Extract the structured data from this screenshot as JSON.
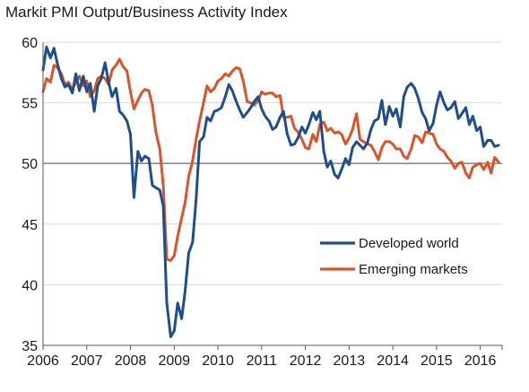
{
  "chart_data": {
    "type": "line",
    "title": "Markit PMI Output/Business Activity Index",
    "xlabel": "",
    "ylabel": "",
    "xlim": [
      2006.0,
      2016.5
    ],
    "ylim": [
      35,
      60
    ],
    "x_ticks": [
      "2006",
      "2007",
      "2008",
      "2009",
      "2010",
      "2011",
      "2012",
      "2013",
      "2014",
      "2015",
      "2016"
    ],
    "y_ticks": [
      35,
      40,
      45,
      50,
      55,
      60
    ],
    "reference_line": 50,
    "grid": "horizontal",
    "legend_position": "lower-right",
    "series": [
      {
        "name": "Developed world",
        "color": "#1f4e8c",
        "x": [
          2006.0,
          2006.08,
          2006.17,
          2006.25,
          2006.33,
          2006.42,
          2006.5,
          2006.58,
          2006.67,
          2006.75,
          2006.83,
          2006.92,
          2007.0,
          2007.08,
          2007.17,
          2007.25,
          2007.33,
          2007.42,
          2007.5,
          2007.58,
          2007.67,
          2007.75,
          2007.83,
          2007.92,
          2008.0,
          2008.08,
          2008.17,
          2008.25,
          2008.33,
          2008.42,
          2008.5,
          2008.58,
          2008.67,
          2008.75,
          2008.83,
          2008.92,
          2009.0,
          2009.08,
          2009.17,
          2009.25,
          2009.33,
          2009.42,
          2009.5,
          2009.58,
          2009.67,
          2009.75,
          2009.83,
          2009.92,
          2010.0,
          2010.08,
          2010.17,
          2010.25,
          2010.33,
          2010.42,
          2010.5,
          2010.58,
          2010.67,
          2010.75,
          2010.83,
          2010.92,
          2011.0,
          2011.08,
          2011.17,
          2011.25,
          2011.33,
          2011.42,
          2011.5,
          2011.58,
          2011.67,
          2011.75,
          2011.83,
          2011.92,
          2012.0,
          2012.08,
          2012.17,
          2012.25,
          2012.33,
          2012.42,
          2012.5,
          2012.58,
          2012.67,
          2012.75,
          2012.83,
          2012.92,
          2013.0,
          2013.08,
          2013.17,
          2013.25,
          2013.33,
          2013.42,
          2013.5,
          2013.58,
          2013.67,
          2013.75,
          2013.83,
          2013.92,
          2014.0,
          2014.08,
          2014.17,
          2014.25,
          2014.33,
          2014.42,
          2014.5,
          2014.58,
          2014.67,
          2014.75,
          2014.83,
          2014.92,
          2015.0,
          2015.08,
          2015.17,
          2015.25,
          2015.33,
          2015.42,
          2015.5,
          2015.58,
          2015.67,
          2015.75,
          2015.83,
          2015.92,
          2016.0,
          2016.08,
          2016.17,
          2016.25,
          2016.33,
          2016.42
        ],
        "values": [
          57.7,
          59.6,
          58.7,
          59.5,
          58.2,
          57.0,
          56.3,
          56.5,
          55.8,
          57.4,
          56.0,
          57.2,
          55.9,
          56.6,
          54.3,
          56.4,
          57.0,
          58.3,
          56.7,
          55.5,
          56.2,
          54.3,
          54.0,
          53.5,
          52.4,
          47.2,
          51.0,
          50.2,
          50.6,
          50.4,
          48.2,
          48.0,
          47.8,
          46.5,
          38.5,
          35.7,
          36.2,
          38.5,
          37.2,
          39.5,
          42.6,
          43.5,
          47.0,
          51.8,
          52.2,
          53.8,
          53.5,
          54.3,
          54.4,
          54.6,
          55.5,
          56.5,
          56.0,
          55.1,
          54.4,
          53.8,
          54.2,
          54.6,
          55.1,
          55.5,
          54.5,
          53.9,
          53.5,
          52.8,
          53.0,
          53.8,
          54.3,
          52.5,
          51.5,
          51.6,
          52.1,
          53.0,
          52.5,
          53.2,
          54.2,
          53.6,
          54.3,
          51.0,
          49.7,
          50.2,
          49.1,
          48.8,
          49.5,
          50.4,
          49.9,
          51.3,
          51.8,
          51.5,
          51.2,
          51.7,
          52.8,
          53.5,
          53.7,
          55.2,
          53.2,
          54.7,
          53.9,
          54.5,
          53.0,
          55.5,
          56.3,
          56.6,
          56.2,
          55.4,
          54.2,
          53.7,
          52.7,
          53.3,
          54.8,
          55.9,
          55.0,
          54.4,
          54.6,
          55.1,
          53.7,
          54.1,
          54.6,
          53.2,
          53.9,
          52.7,
          53.0,
          51.4,
          51.9,
          51.9,
          51.4,
          51.5
        ]
      },
      {
        "name": "Emerging  markets",
        "color": "#d9542b",
        "x": [
          2006.0,
          2006.08,
          2006.17,
          2006.25,
          2006.33,
          2006.42,
          2006.5,
          2006.58,
          2006.67,
          2006.75,
          2006.83,
          2006.92,
          2007.0,
          2007.08,
          2007.17,
          2007.25,
          2007.33,
          2007.42,
          2007.5,
          2007.58,
          2007.67,
          2007.75,
          2007.83,
          2007.92,
          2008.0,
          2008.08,
          2008.17,
          2008.25,
          2008.33,
          2008.42,
          2008.5,
          2008.58,
          2008.67,
          2008.75,
          2008.83,
          2008.92,
          2009.0,
          2009.08,
          2009.17,
          2009.25,
          2009.33,
          2009.42,
          2009.5,
          2009.58,
          2009.67,
          2009.75,
          2009.83,
          2009.92,
          2010.0,
          2010.08,
          2010.17,
          2010.25,
          2010.33,
          2010.42,
          2010.5,
          2010.58,
          2010.67,
          2010.75,
          2010.83,
          2010.92,
          2011.0,
          2011.08,
          2011.17,
          2011.25,
          2011.33,
          2011.42,
          2011.5,
          2011.58,
          2011.67,
          2011.75,
          2011.83,
          2011.92,
          2012.0,
          2012.08,
          2012.17,
          2012.25,
          2012.33,
          2012.42,
          2012.5,
          2012.58,
          2012.67,
          2012.75,
          2012.83,
          2012.92,
          2013.0,
          2013.08,
          2013.17,
          2013.25,
          2013.33,
          2013.42,
          2013.5,
          2013.58,
          2013.67,
          2013.75,
          2013.83,
          2013.92,
          2014.0,
          2014.08,
          2014.17,
          2014.25,
          2014.33,
          2014.42,
          2014.5,
          2014.58,
          2014.67,
          2014.75,
          2014.83,
          2014.92,
          2015.0,
          2015.08,
          2015.17,
          2015.25,
          2015.33,
          2015.42,
          2015.5,
          2015.58,
          2015.67,
          2015.75,
          2015.83,
          2015.92,
          2016.0,
          2016.08,
          2016.17,
          2016.25,
          2016.33,
          2016.42
        ],
        "values": [
          55.9,
          57.0,
          56.7,
          58.1,
          57.9,
          57.4,
          56.5,
          56.7,
          56.1,
          56.7,
          57.2,
          56.4,
          56.8,
          55.5,
          56.0,
          57.0,
          57.2,
          57.0,
          56.5,
          57.7,
          58.1,
          58.6,
          58.0,
          57.6,
          55.9,
          54.5,
          55.2,
          55.8,
          56.1,
          56.0,
          54.8,
          52.6,
          51.2,
          48.2,
          42.1,
          42.0,
          42.4,
          44.0,
          45.5,
          46.8,
          48.9,
          50.2,
          52.0,
          53.5,
          55.0,
          56.4,
          55.9,
          56.2,
          56.8,
          57.0,
          57.4,
          57.2,
          57.6,
          57.9,
          57.8,
          56.8,
          55.1,
          55.0,
          54.8,
          55.2,
          55.9,
          55.7,
          55.8,
          55.8,
          55.5,
          55.6,
          53.8,
          53.8,
          53.9,
          52.9,
          52.6,
          52.0,
          51.3,
          51.2,
          52.4,
          51.8,
          53.2,
          53.4,
          52.7,
          52.9,
          52.5,
          52.6,
          52.4,
          51.6,
          52.1,
          52.8,
          54.1,
          52.0,
          51.8,
          51.6,
          51.5,
          51.0,
          50.3,
          51.3,
          51.8,
          51.8,
          51.6,
          51.2,
          51.2,
          50.6,
          50.4,
          51.2,
          52.3,
          52.2,
          51.7,
          52.6,
          52.5,
          52.4,
          51.6,
          51.2,
          51.0,
          50.5,
          50.2,
          49.6,
          50.0,
          50.1,
          49.2,
          48.8,
          49.7,
          49.9,
          50.0,
          49.5,
          50.1,
          49.2,
          50.5,
          50.1
        ]
      }
    ]
  }
}
